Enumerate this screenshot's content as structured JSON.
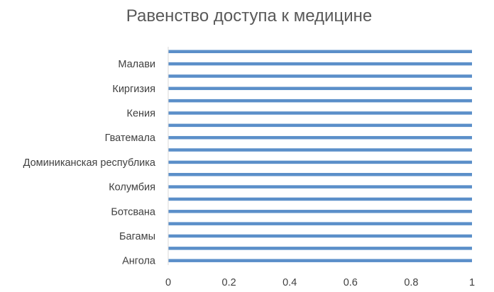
{
  "chart_data": {
    "type": "bar",
    "orientation": "horizontal",
    "title": "Равенство доступа к медицине",
    "xlabel": "",
    "ylabel": "",
    "xlim": [
      0,
      1
    ],
    "x_ticks": [
      "0",
      "0.2",
      "0.4",
      "0.6",
      "0.8",
      "1"
    ],
    "categories_labeled": [
      "Ангола",
      "Багамы",
      "Ботсвана",
      "Колумбия",
      "Доминиканская республика",
      "Гватемала",
      "Кения",
      "Киргизия",
      "Малави"
    ],
    "bar_count": 18,
    "values": [
      1,
      1,
      1,
      1,
      1,
      1,
      1,
      1,
      1,
      1,
      1,
      1,
      1,
      1,
      1,
      1,
      1,
      1
    ],
    "bar_color": "#5B8FC9",
    "grid": false,
    "legend": "none"
  }
}
